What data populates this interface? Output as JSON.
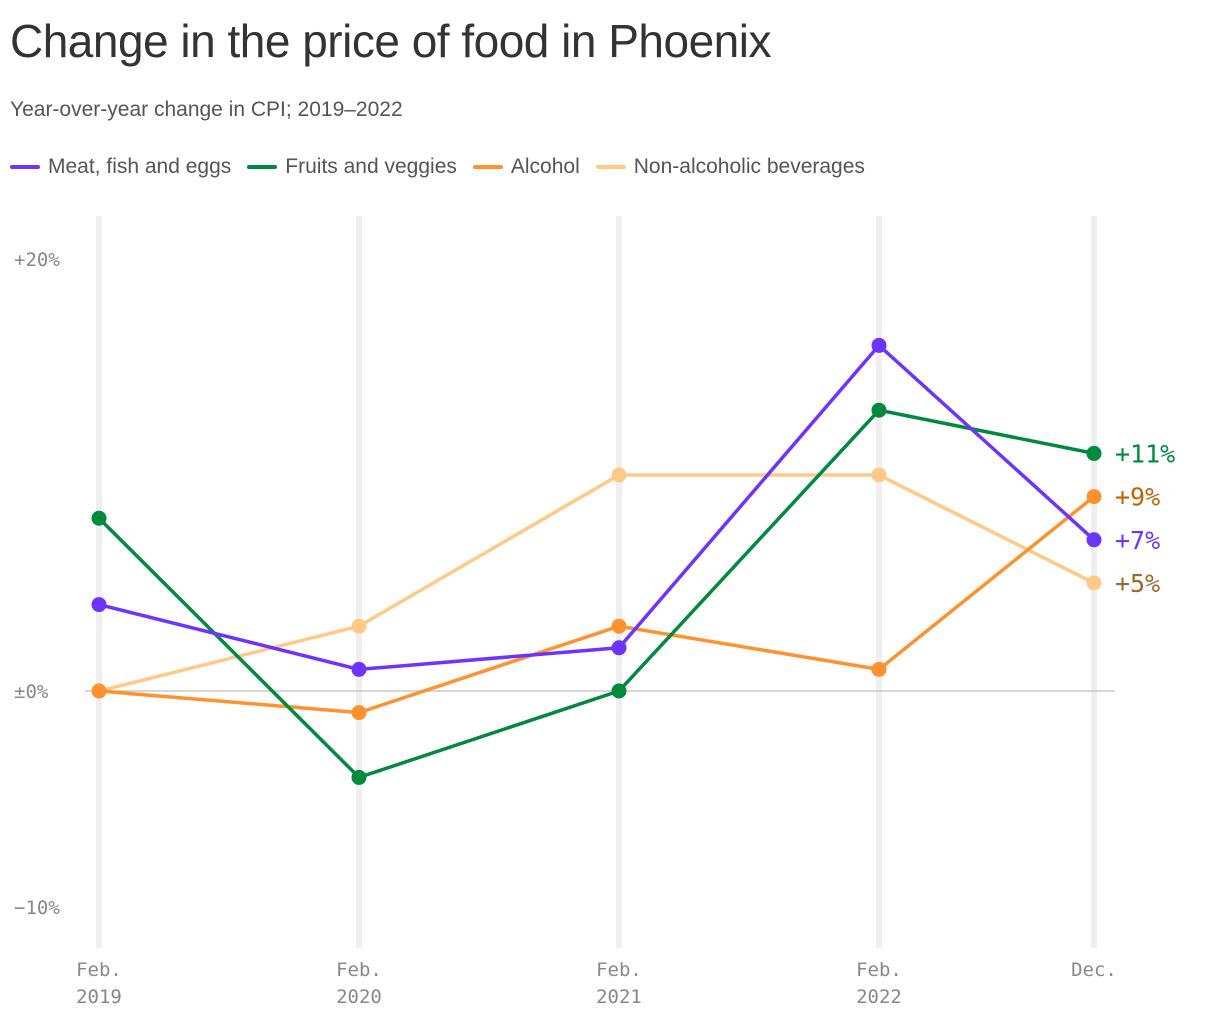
{
  "title": "Change in the price of food in Phoenix",
  "subtitle": "Year-over-year change in CPI; 2019–2022",
  "chart_data": {
    "type": "line",
    "title": "Change in the price of food in Phoenix",
    "subtitle": "Year-over-year change in CPI; 2019–2022",
    "x": [
      {
        "line1": "Feb.",
        "line2": "2019"
      },
      {
        "line1": "Feb.",
        "line2": "2020"
      },
      {
        "line1": "Feb.",
        "line2": "2021"
      },
      {
        "line1": "Feb.",
        "line2": "2022"
      },
      {
        "line1": "Dec.",
        "line2": ""
      }
    ],
    "ylim": [
      -10,
      20
    ],
    "yticks": [
      {
        "value": 20,
        "label": "+20%"
      },
      {
        "value": 0,
        "label": "±0%"
      },
      {
        "value": -10,
        "label": "−10%"
      }
    ],
    "grid": true,
    "legend_position": "top-left",
    "series": [
      {
        "name": "Meat, fish and eggs",
        "color": "#6e33ff",
        "label_color": "#6e33ff",
        "values": [
          4,
          1,
          2,
          16,
          7
        ],
        "end_label": "+7%"
      },
      {
        "name": "Fruits and veggies",
        "color": "#008a3e",
        "label_color": "#008a3e",
        "values": [
          8,
          -4,
          0,
          13,
          11
        ],
        "end_label": "+11%"
      },
      {
        "name": "Alcohol",
        "color": "#ff922e",
        "label_color": "#c26200",
        "values": [
          0,
          -1,
          3,
          1,
          9
        ],
        "end_label": "+9%"
      },
      {
        "name": "Non-alcoholic beverages",
        "color": "#ffca88",
        "label_color": "#a0672a",
        "values": [
          0,
          3,
          10,
          10,
          5
        ],
        "end_label": "+5%"
      }
    ]
  }
}
